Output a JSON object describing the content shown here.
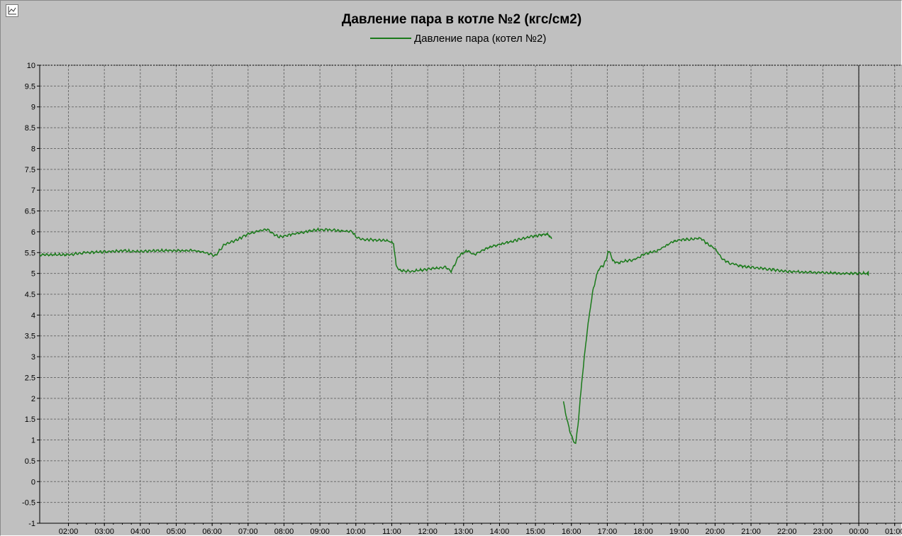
{
  "chart_data": {
    "type": "line",
    "title": "Давление пара в котле №2 (кгс/см2)",
    "xlabel": "",
    "ylabel": "",
    "ylim": [
      -1,
      10
    ],
    "yticks": [
      "10",
      "9.5",
      "9",
      "8.5",
      "8",
      "7.5",
      "7",
      "6.5",
      "6",
      "5.5",
      "5",
      "4.5",
      "4",
      "3.5",
      "3",
      "2.5",
      "2",
      "1.5",
      "1",
      "0.5",
      "0",
      "-0.5",
      "-1"
    ],
    "xticks": [
      "02:00",
      "03:00",
      "04:00",
      "05:00",
      "06:00",
      "07:00",
      "08:00",
      "09:00",
      "10:00",
      "11:00",
      "12:00",
      "13:00",
      "14:00",
      "15:00",
      "16:00",
      "17:00",
      "18:00",
      "19:00",
      "20:00",
      "21:00",
      "22:00",
      "23:00",
      "00:00",
      "01:00"
    ],
    "grid": true,
    "legend_position": "top-center",
    "series": [
      {
        "name": "Давление пара (котел №2)",
        "color": "#1a7a1a",
        "segments": [
          [
            [
              1.2,
              5.45
            ],
            [
              1.5,
              5.45
            ],
            [
              2.0,
              5.45
            ],
            [
              2.5,
              5.5
            ],
            [
              3.0,
              5.52
            ],
            [
              3.5,
              5.55
            ],
            [
              4.0,
              5.52
            ],
            [
              4.5,
              5.55
            ],
            [
              5.0,
              5.55
            ],
            [
              5.5,
              5.55
            ],
            [
              5.8,
              5.5
            ],
            [
              6.0,
              5.45
            ],
            [
              6.1,
              5.42
            ],
            [
              6.2,
              5.55
            ],
            [
              6.35,
              5.7
            ],
            [
              6.6,
              5.78
            ],
            [
              6.8,
              5.85
            ],
            [
              7.0,
              5.95
            ],
            [
              7.2,
              6.0
            ],
            [
              7.4,
              6.05
            ],
            [
              7.55,
              6.05
            ],
            [
              7.7,
              5.95
            ],
            [
              7.85,
              5.88
            ],
            [
              8.0,
              5.9
            ],
            [
              8.3,
              5.95
            ],
            [
              8.6,
              6.0
            ],
            [
              8.9,
              6.05
            ],
            [
              9.2,
              6.05
            ],
            [
              9.6,
              6.02
            ],
            [
              9.9,
              6.0
            ],
            [
              10.0,
              5.88
            ],
            [
              10.2,
              5.82
            ],
            [
              10.6,
              5.8
            ],
            [
              10.9,
              5.78
            ],
            [
              11.05,
              5.72
            ],
            [
              11.12,
              5.2
            ],
            [
              11.2,
              5.08
            ],
            [
              11.5,
              5.05
            ],
            [
              11.8,
              5.08
            ],
            [
              12.2,
              5.12
            ],
            [
              12.5,
              5.15
            ],
            [
              12.65,
              5.05
            ],
            [
              12.75,
              5.2
            ],
            [
              12.85,
              5.4
            ],
            [
              13.0,
              5.5
            ],
            [
              13.1,
              5.55
            ],
            [
              13.3,
              5.45
            ],
            [
              13.5,
              5.55
            ],
            [
              13.8,
              5.65
            ],
            [
              14.1,
              5.72
            ],
            [
              14.4,
              5.78
            ],
            [
              14.7,
              5.85
            ],
            [
              15.0,
              5.9
            ],
            [
              15.3,
              5.95
            ],
            [
              15.4,
              5.9
            ],
            [
              15.45,
              5.83
            ]
          ],
          [
            [
              15.78,
              1.9
            ],
            [
              15.85,
              1.6
            ],
            [
              15.9,
              1.4
            ],
            [
              16.0,
              1.1
            ],
            [
              16.08,
              0.95
            ],
            [
              16.12,
              0.9
            ],
            [
              16.2,
              1.5
            ],
            [
              16.3,
              2.5
            ],
            [
              16.45,
              3.7
            ],
            [
              16.6,
              4.6
            ],
            [
              16.75,
              5.1
            ],
            [
              16.9,
              5.2
            ],
            [
              16.98,
              5.35
            ],
            [
              17.02,
              5.52
            ],
            [
              17.08,
              5.5
            ],
            [
              17.15,
              5.3
            ],
            [
              17.3,
              5.25
            ],
            [
              17.5,
              5.3
            ],
            [
              17.7,
              5.32
            ],
            [
              17.85,
              5.38
            ],
            [
              18.0,
              5.45
            ],
            [
              18.2,
              5.5
            ],
            [
              18.4,
              5.55
            ],
            [
              18.6,
              5.65
            ],
            [
              18.8,
              5.75
            ],
            [
              19.0,
              5.8
            ],
            [
              19.2,
              5.82
            ],
            [
              19.4,
              5.82
            ],
            [
              19.6,
              5.85
            ],
            [
              19.8,
              5.7
            ],
            [
              20.0,
              5.6
            ],
            [
              20.2,
              5.35
            ],
            [
              20.4,
              5.25
            ],
            [
              20.7,
              5.18
            ],
            [
              21.0,
              5.15
            ],
            [
              21.5,
              5.1
            ],
            [
              22.0,
              5.05
            ],
            [
              22.5,
              5.03
            ],
            [
              23.0,
              5.02
            ],
            [
              23.5,
              5.0
            ],
            [
              24.2,
              5.0
            ]
          ]
        ]
      }
    ]
  }
}
